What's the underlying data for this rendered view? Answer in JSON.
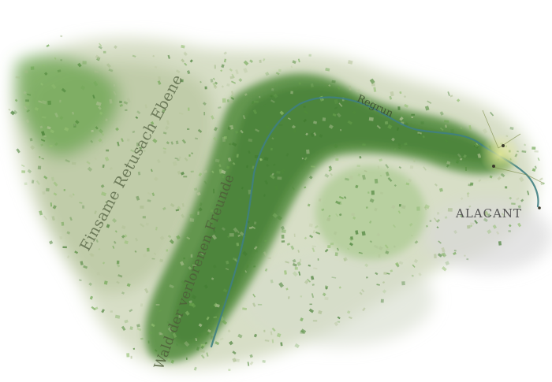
{
  "map": {
    "labels": {
      "plain": "Einsame Retusach Ebene",
      "forest": "Wald der verlorenen Freunde",
      "river": "Regrun",
      "city": "ALACANT"
    },
    "colors": {
      "background": "#ffffff",
      "plain_light": "#c9d3b3",
      "plain_mid": "#a9bd8e",
      "forest_dark": "#4f8a3a",
      "forest_mid": "#6aa44e",
      "forest_light": "#93bf72",
      "fog": "#d8d8d8",
      "river": "#3f7f82",
      "city_glow": "#e6ea9a",
      "text": "#5a6a4a",
      "city_text": "#555555"
    }
  }
}
